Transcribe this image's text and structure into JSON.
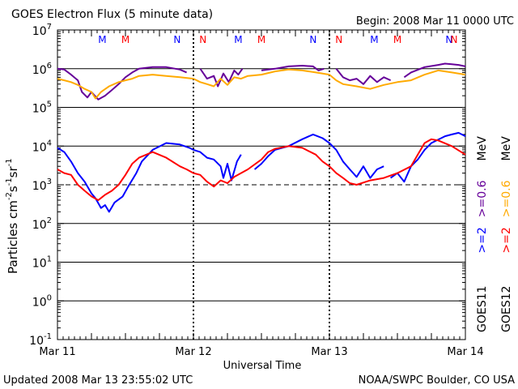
{
  "header": {
    "title": "GOES Electron Flux (5 minute data)",
    "begin": "Begin: 2008 Mar 11 0000 UTC"
  },
  "footer": {
    "updated": "Updated 2008 Mar 13 23:55:02 UTC",
    "credit": "NOAA/SWPC Boulder, CO USA"
  },
  "chart_data": {
    "type": "line",
    "title": "GOES Electron Flux (5 minute data)",
    "xlabel": "Universal Time",
    "ylabel_parts": [
      "Particles cm",
      "-2",
      "s",
      "-1",
      "sr",
      "-1"
    ],
    "y_scale": "log",
    "ylim": [
      0.1,
      10000000
    ],
    "y_ticks": [
      {
        "base": "10",
        "exp": "7",
        "value": 10000000
      },
      {
        "base": "10",
        "exp": "6",
        "value": 1000000
      },
      {
        "base": "10",
        "exp": "5",
        "value": 100000
      },
      {
        "base": "10",
        "exp": "4",
        "value": 10000
      },
      {
        "base": "10",
        "exp": "3",
        "value": 1000
      },
      {
        "base": "10",
        "exp": "2",
        "value": 100
      },
      {
        "base": "10",
        "exp": "1",
        "value": 10
      },
      {
        "base": "10",
        "exp": "0",
        "value": 1
      },
      {
        "base": "10",
        "exp": "-1",
        "value": 0.1
      }
    ],
    "x_range_days": [
      0,
      3
    ],
    "x_ticks": [
      {
        "label": "Mar 11",
        "day": 0
      },
      {
        "label": "Mar 12",
        "day": 1
      },
      {
        "label": "Mar 13",
        "day": 2
      },
      {
        "label": "Mar 14",
        "day": 3
      }
    ],
    "dashed_threshold": 1000,
    "markers": [
      {
        "label": "M",
        "day": 0.33,
        "color": "#0000ff"
      },
      {
        "label": "M",
        "day": 0.5,
        "color": "#ff0000"
      },
      {
        "label": "N",
        "day": 0.88,
        "color": "#0000ff"
      },
      {
        "label": "N",
        "day": 1.07,
        "color": "#ff0000"
      },
      {
        "label": "M",
        "day": 1.33,
        "color": "#0000ff"
      },
      {
        "label": "M",
        "day": 1.5,
        "color": "#ff0000"
      },
      {
        "label": "N",
        "day": 1.88,
        "color": "#0000ff"
      },
      {
        "label": "N",
        "day": 2.07,
        "color": "#ff0000"
      },
      {
        "label": "M",
        "day": 2.33,
        "color": "#0000ff"
      },
      {
        "label": "M",
        "day": 2.5,
        "color": "#ff0000"
      },
      {
        "label": "N",
        "day": 2.88,
        "color": "#0000ff"
      },
      {
        "label": "N",
        "day": 3.07,
        "color": "#ff0000"
      }
    ],
    "legend": {
      "energy_unit": "MeV",
      "goes11_label": "GOES11",
      "goes12_label": "GOES12",
      "goes11_blue": ">=2",
      "goes11_purple": ">=0.6",
      "goes12_red": ">=2",
      "goes12_orange": ">=0.6"
    },
    "series": [
      {
        "name": "GOES11 >=0.6 MeV",
        "color": "#660099",
        "points": [
          [
            0.0,
            1000000
          ],
          [
            0.05,
            950000
          ],
          [
            0.1,
            700000
          ],
          [
            0.15,
            500000
          ],
          [
            0.18,
            250000
          ],
          [
            0.22,
            180000
          ],
          [
            0.25,
            250000
          ],
          [
            0.3,
            160000
          ],
          [
            0.35,
            200000
          ],
          [
            0.4,
            280000
          ],
          [
            0.45,
            400000
          ],
          [
            0.5,
            600000
          ],
          [
            0.55,
            800000
          ],
          [
            0.6,
            1000000
          ],
          [
            0.7,
            1100000
          ],
          [
            0.8,
            1100000
          ],
          [
            0.9,
            950000
          ],
          [
            0.95,
            800000
          ],
          null,
          [
            1.05,
            1000000
          ],
          [
            1.1,
            550000
          ],
          [
            1.15,
            650000
          ],
          [
            1.18,
            350000
          ],
          [
            1.22,
            750000
          ],
          [
            1.26,
            450000
          ],
          [
            1.3,
            900000
          ],
          [
            1.33,
            700000
          ],
          [
            1.36,
            1000000
          ],
          null,
          [
            1.5,
            900000
          ],
          [
            1.6,
            1000000
          ],
          [
            1.7,
            1150000
          ],
          [
            1.8,
            1200000
          ],
          [
            1.88,
            1150000
          ],
          [
            1.92,
            900000
          ],
          [
            1.96,
            1000000
          ],
          null,
          [
            2.05,
            1000000
          ],
          [
            2.1,
            600000
          ],
          [
            2.15,
            500000
          ],
          [
            2.2,
            550000
          ],
          [
            2.25,
            400000
          ],
          [
            2.3,
            650000
          ],
          [
            2.35,
            450000
          ],
          [
            2.4,
            600000
          ],
          [
            2.45,
            500000
          ],
          null,
          [
            2.55,
            600000
          ],
          [
            2.6,
            800000
          ],
          [
            2.7,
            1100000
          ],
          [
            2.8,
            1250000
          ],
          [
            2.85,
            1350000
          ],
          [
            2.9,
            1300000
          ],
          [
            2.95,
            1250000
          ],
          [
            3.0,
            1150000
          ]
        ]
      },
      {
        "name": "GOES12 >=0.6 MeV",
        "color": "#ffaa00",
        "points": [
          [
            0.0,
            550000
          ],
          [
            0.05,
            500000
          ],
          [
            0.1,
            450000
          ],
          [
            0.15,
            380000
          ],
          [
            0.2,
            300000
          ],
          [
            0.25,
            250000
          ],
          [
            0.28,
            170000
          ],
          [
            0.32,
            250000
          ],
          [
            0.38,
            350000
          ],
          [
            0.45,
            450000
          ],
          [
            0.5,
            500000
          ],
          [
            0.55,
            550000
          ],
          [
            0.6,
            650000
          ],
          [
            0.7,
            700000
          ],
          [
            0.8,
            650000
          ],
          [
            0.9,
            600000
          ],
          [
            1.0,
            550000
          ],
          [
            1.05,
            450000
          ],
          [
            1.1,
            400000
          ],
          [
            1.15,
            350000
          ],
          [
            1.2,
            550000
          ],
          [
            1.25,
            380000
          ],
          [
            1.3,
            600000
          ],
          [
            1.35,
            550000
          ],
          [
            1.4,
            650000
          ],
          [
            1.5,
            700000
          ],
          [
            1.6,
            850000
          ],
          [
            1.7,
            950000
          ],
          [
            1.8,
            900000
          ],
          [
            1.9,
            800000
          ],
          [
            2.0,
            700000
          ],
          [
            2.05,
            500000
          ],
          [
            2.1,
            400000
          ],
          [
            2.2,
            350000
          ],
          [
            2.3,
            300000
          ],
          [
            2.4,
            380000
          ],
          [
            2.5,
            450000
          ],
          [
            2.6,
            500000
          ],
          [
            2.7,
            700000
          ],
          [
            2.8,
            900000
          ],
          [
            2.9,
            800000
          ],
          [
            3.0,
            700000
          ]
        ]
      },
      {
        "name": "GOES11 >=2 MeV",
        "color": "#0000ff",
        "points": [
          [
            0.0,
            9000
          ],
          [
            0.05,
            7000
          ],
          [
            0.1,
            4000
          ],
          [
            0.15,
            2000
          ],
          [
            0.2,
            1200
          ],
          [
            0.25,
            600
          ],
          [
            0.28,
            450
          ],
          [
            0.32,
            250
          ],
          [
            0.35,
            300
          ],
          [
            0.38,
            200
          ],
          [
            0.42,
            350
          ],
          [
            0.48,
            500
          ],
          [
            0.52,
            900
          ],
          [
            0.58,
            2000
          ],
          [
            0.62,
            4000
          ],
          [
            0.7,
            8000
          ],
          [
            0.8,
            12000
          ],
          [
            0.9,
            11000
          ],
          [
            0.97,
            9000
          ],
          [
            1.0,
            8000
          ],
          [
            1.05,
            7000
          ],
          [
            1.1,
            5000
          ],
          [
            1.15,
            4500
          ],
          [
            1.2,
            3000
          ],
          [
            1.22,
            1500
          ],
          [
            1.25,
            3500
          ],
          [
            1.28,
            1300
          ],
          [
            1.32,
            4000
          ],
          [
            1.35,
            6000
          ],
          null,
          [
            1.45,
            2500
          ],
          [
            1.5,
            3500
          ],
          [
            1.55,
            5500
          ],
          [
            1.6,
            8000
          ],
          [
            1.7,
            10000
          ],
          [
            1.8,
            15000
          ],
          [
            1.88,
            20000
          ],
          [
            1.95,
            16000
          ],
          [
            2.0,
            12000
          ],
          [
            2.05,
            8000
          ],
          [
            2.1,
            4000
          ],
          [
            2.15,
            2500
          ],
          [
            2.2,
            1600
          ],
          [
            2.25,
            3000
          ],
          [
            2.3,
            1500
          ],
          [
            2.35,
            2500
          ],
          [
            2.4,
            3000
          ],
          null,
          [
            2.45,
            1500
          ],
          [
            2.5,
            2000
          ],
          [
            2.55,
            1200
          ],
          [
            2.6,
            3000
          ],
          [
            2.65,
            4500
          ],
          [
            2.7,
            8000
          ],
          [
            2.75,
            12000
          ],
          [
            2.85,
            18000
          ],
          [
            2.9,
            20000
          ],
          [
            2.95,
            22000
          ],
          [
            3.0,
            18000
          ]
        ]
      },
      {
        "name": "GOES12 >=2 MeV",
        "color": "#ff0000",
        "points": [
          [
            0.0,
            2500
          ],
          [
            0.05,
            2000
          ],
          [
            0.1,
            1800
          ],
          [
            0.15,
            1000
          ],
          [
            0.2,
            700
          ],
          [
            0.25,
            500
          ],
          [
            0.3,
            400
          ],
          [
            0.35,
            550
          ],
          [
            0.4,
            700
          ],
          [
            0.45,
            1000
          ],
          [
            0.5,
            1800
          ],
          [
            0.55,
            3500
          ],
          [
            0.6,
            5000
          ],
          [
            0.7,
            7000
          ],
          [
            0.8,
            5000
          ],
          [
            0.9,
            3000
          ],
          [
            0.95,
            2500
          ],
          [
            1.0,
            2000
          ],
          [
            1.05,
            1800
          ],
          [
            1.1,
            1200
          ],
          [
            1.15,
            900
          ],
          [
            1.2,
            1300
          ],
          [
            1.25,
            1100
          ],
          [
            1.3,
            1600
          ],
          [
            1.35,
            2000
          ],
          [
            1.4,
            2500
          ],
          [
            1.5,
            4500
          ],
          [
            1.55,
            7000
          ],
          [
            1.6,
            8500
          ],
          [
            1.7,
            10000
          ],
          [
            1.8,
            9000
          ],
          [
            1.9,
            6000
          ],
          [
            1.95,
            4000
          ],
          [
            2.0,
            3000
          ],
          [
            2.05,
            2000
          ],
          [
            2.1,
            1500
          ],
          [
            2.15,
            1100
          ],
          [
            2.2,
            1000
          ],
          [
            2.3,
            1300
          ],
          [
            2.4,
            1500
          ],
          [
            2.5,
            2000
          ],
          [
            2.6,
            3000
          ],
          [
            2.65,
            6000
          ],
          [
            2.7,
            12000
          ],
          [
            2.75,
            15000
          ],
          [
            2.8,
            14000
          ],
          [
            2.9,
            10000
          ],
          [
            3.0,
            6000
          ]
        ]
      }
    ]
  }
}
